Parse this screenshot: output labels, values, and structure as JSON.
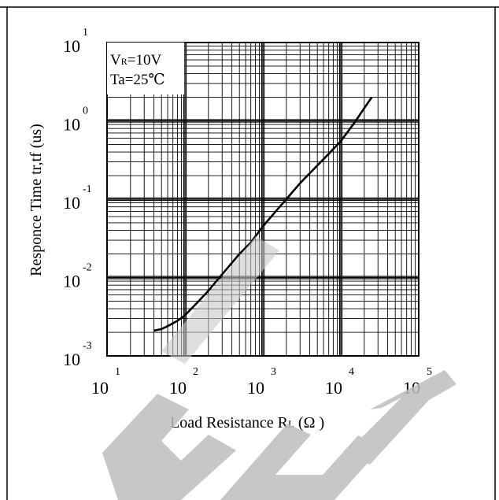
{
  "chart_data": {
    "type": "line",
    "xscale": "log",
    "yscale": "log",
    "xlim": [
      10,
      100000
    ],
    "ylim": [
      0.001,
      10
    ],
    "grid": true,
    "xlabel": "Load Resistance R",
    "xlabel_sub": "L",
    "xlabel_unit": "(Ω )",
    "ylabel": "Responce Time tr,tf (us)",
    "x_ticks": [
      {
        "base": "10",
        "exp": "1"
      },
      {
        "base": "10",
        "exp": "2"
      },
      {
        "base": "10",
        "exp": "3"
      },
      {
        "base": "10",
        "exp": "4"
      },
      {
        "base": "10",
        "exp": "5"
      }
    ],
    "y_ticks": [
      {
        "base": "10",
        "exp": "-3"
      },
      {
        "base": "10",
        "exp": "-2"
      },
      {
        "base": "10",
        "exp": "-1"
      },
      {
        "base": "10",
        "exp": "0"
      },
      {
        "base": "10",
        "exp": "1"
      }
    ],
    "conditions": {
      "line1_prefix": "V",
      "line1_sub": "R",
      "line1_suffix": "=10V",
      "line2": "Ta=25℃"
    },
    "series": [
      {
        "x": [
          40,
          50,
          60,
          80,
          100,
          150,
          200,
          300,
          500,
          700,
          1000,
          1500,
          2000,
          3000,
          5000,
          7000,
          10000,
          15000,
          20000,
          25000
        ],
        "y": [
          0.0021,
          0.0022,
          0.0024,
          0.0028,
          0.0033,
          0.005,
          0.0068,
          0.011,
          0.02,
          0.028,
          0.045,
          0.072,
          0.1,
          0.16,
          0.27,
          0.38,
          0.55,
          0.95,
          1.45,
          2.0
        ]
      }
    ],
    "colors": {
      "line": "#000000",
      "grid": "#000000",
      "watermark": "#bdbdbd"
    }
  },
  "watermark": {
    "text": "GHT"
  }
}
